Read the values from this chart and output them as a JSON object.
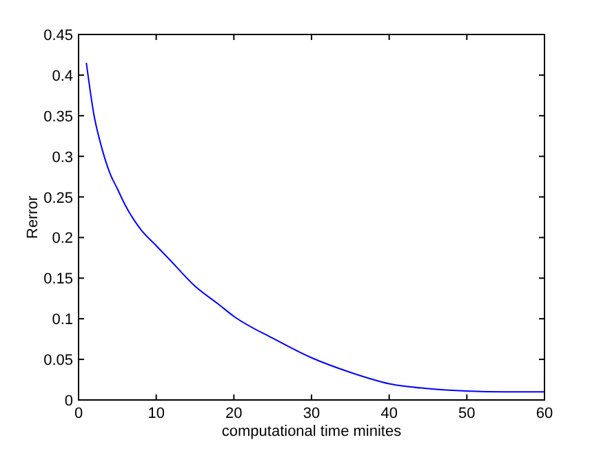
{
  "chart_data": {
    "type": "line",
    "xlabel": "computational time minites",
    "ylabel": "Rerror",
    "x": [
      1,
      2,
      3,
      4,
      5,
      6,
      8,
      10,
      12,
      15,
      18,
      20,
      25,
      30,
      35,
      40,
      45,
      50,
      55,
      60
    ],
    "series": [
      {
        "color": "#0000ff",
        "values": [
          0.415,
          0.35,
          0.31,
          0.28,
          0.26,
          0.24,
          0.21,
          0.19,
          0.17,
          0.14,
          0.118,
          0.103,
          0.076,
          0.052,
          0.034,
          0.02,
          0.014,
          0.011,
          0.01,
          0.01
        ]
      }
    ],
    "xlim": [
      0,
      60
    ],
    "xticks": [
      0,
      10,
      20,
      30,
      40,
      50,
      60
    ],
    "ylim": [
      0,
      0.45
    ],
    "yticks": [
      0,
      0.05,
      0.1,
      0.15,
      0.2,
      0.25,
      0.3,
      0.35,
      0.4,
      0.45
    ],
    "grid": false,
    "marker": "none",
    "line_style": "solid"
  }
}
